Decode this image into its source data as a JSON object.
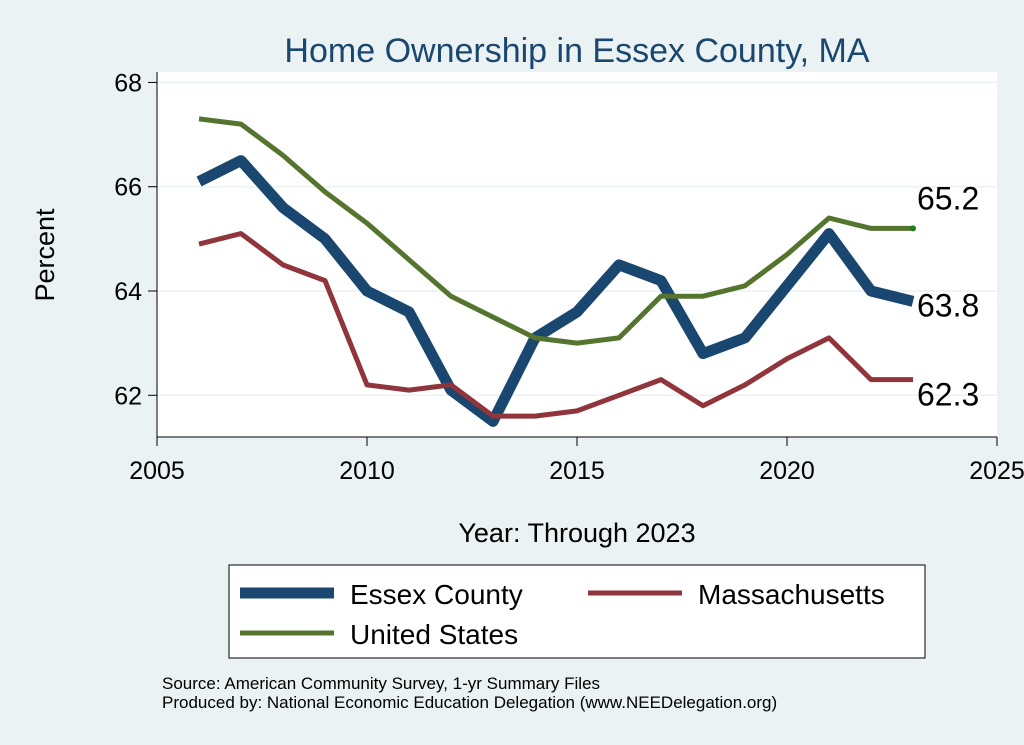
{
  "chart_data": {
    "type": "line",
    "title": "Home Ownership in Essex County, MA",
    "xlabel": "Year: Through 2023",
    "ylabel": "Percent",
    "xlim": [
      2005,
      2025
    ],
    "ylim": [
      61.2,
      68.2
    ],
    "xticks": [
      2005,
      2010,
      2015,
      2020,
      2025
    ],
    "yticks": [
      62,
      64,
      66,
      68
    ],
    "grid": true,
    "legend_position": "bottom",
    "x": [
      2006,
      2007,
      2008,
      2009,
      2010,
      2011,
      2012,
      2013,
      2014,
      2015,
      2016,
      2017,
      2018,
      2019,
      2020,
      2021,
      2022,
      2023
    ],
    "series": [
      {
        "name": "Essex County",
        "color": "#1a476f",
        "values": [
          66.1,
          66.5,
          65.6,
          65.0,
          64.0,
          63.6,
          62.1,
          61.5,
          63.1,
          63.6,
          64.5,
          64.2,
          62.8,
          63.1,
          64.1,
          65.1,
          64.0,
          63.8
        ],
        "end_label": "63.8"
      },
      {
        "name": "Massachusetts",
        "color": "#90353b",
        "values": [
          64.9,
          65.1,
          64.5,
          64.2,
          62.2,
          62.1,
          62.2,
          61.6,
          61.6,
          61.7,
          62.0,
          62.3,
          61.8,
          62.2,
          62.7,
          63.1,
          62.3,
          62.3
        ],
        "end_label": "62.3"
      },
      {
        "name": "United States",
        "color": "#55752f",
        "values": [
          67.3,
          67.2,
          66.6,
          65.9,
          65.3,
          64.6,
          63.9,
          63.5,
          63.1,
          63.0,
          63.1,
          63.9,
          63.9,
          64.1,
          64.7,
          65.4,
          65.2,
          65.2
        ],
        "end_label": "65.2"
      }
    ]
  },
  "notes": {
    "source": "Source: American Community Survey, 1-yr Summary Files",
    "produced_by": "Produced by: National Economic Education Delegation (www.NEEDelegation.org)"
  },
  "colors": {
    "background": "#eaf2f3",
    "plot_background": "#ffffff",
    "title": "#1a476f",
    "end_dot": "#1e7d1e"
  }
}
